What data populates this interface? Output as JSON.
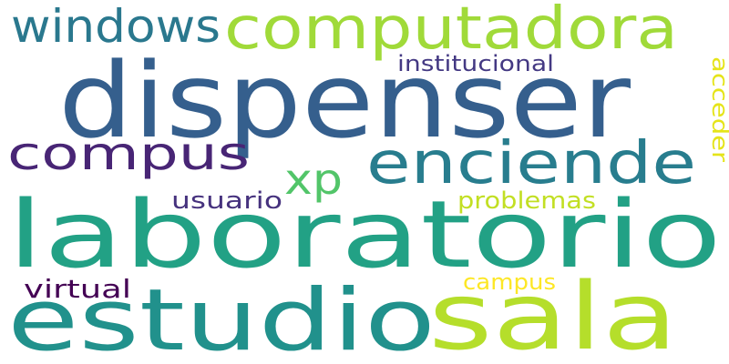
{
  "words": [
    {
      "text": "laboratorio",
      "color": "#22a185"
    },
    {
      "text": "dispenser",
      "color": "#355f8d"
    },
    {
      "text": "estudio",
      "color": "#21918c"
    },
    {
      "text": "sala",
      "color": "#b5de2b"
    },
    {
      "text": "computadora",
      "color": "#a0da39"
    },
    {
      "text": "compus",
      "color": "#482575"
    },
    {
      "text": "enciende",
      "color": "#287d8e"
    },
    {
      "text": "windows",
      "color": "#2a788e"
    },
    {
      "text": "xp",
      "color": "#52c569"
    },
    {
      "text": "institucional",
      "color": "#443983"
    },
    {
      "text": "acceder",
      "color": "#e5e419"
    },
    {
      "text": "usuario",
      "color": "#46327e"
    },
    {
      "text": "problemas",
      "color": "#c2df23"
    },
    {
      "text": "campus",
      "color": "#fde725"
    },
    {
      "text": "virtual",
      "color": "#440154"
    }
  ]
}
